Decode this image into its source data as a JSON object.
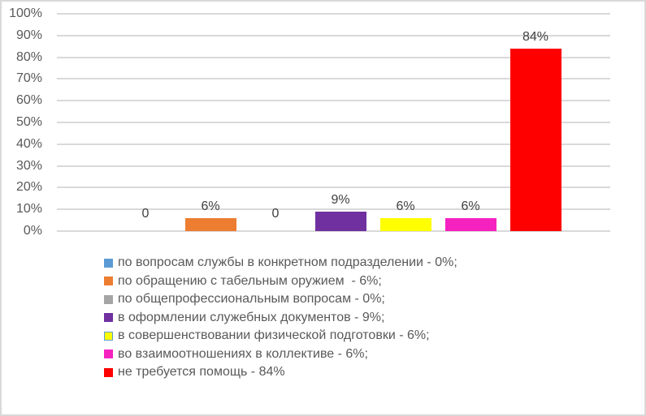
{
  "chart_data": {
    "type": "bar",
    "title": "",
    "xlabel": "",
    "ylabel": "",
    "ylim": [
      0,
      100
    ],
    "grid": true,
    "legend_position": "bottom",
    "y_ticks": [
      "0%",
      "10%",
      "20%",
      "30%",
      "40%",
      "50%",
      "60%",
      "70%",
      "80%",
      "90%",
      "100%"
    ],
    "categories": [
      "по вопросам службы в конкретном подразделении - 0%;",
      "по обращению с табельным оружием  - 6%;",
      "по общепрофессиональным вопросам - 0%;",
      "в оформлении служебных документов - 9%;",
      "в совершенствовании физической подготовки - 6%;",
      "во взаимоотношениях в коллективе - 6%;",
      "не требуется помощь - 84%"
    ],
    "values": [
      0,
      6,
      0,
      9,
      6,
      6,
      84
    ],
    "data_labels": [
      "0",
      "6%",
      "0",
      "9%",
      "6%",
      "6%",
      "84%"
    ],
    "colors": [
      "#5b9bd5",
      "#ed7d31",
      "#a5a5a5",
      "#7030a0",
      "#ffff00",
      "#f522c0",
      "#ff0000"
    ]
  },
  "legend": {
    "items": [
      {
        "label": "по вопросам службы в конкретном подразделении - 0%;",
        "color": "#5b9bd5"
      },
      {
        "label": "по обращению с табельным оружием  - 6%;",
        "color": "#ed7d31"
      },
      {
        "label": "по общепрофессиональным вопросам - 0%;",
        "color": "#a5a5a5"
      },
      {
        "label": "в оформлении служебных документов - 9%;",
        "color": "#7030a0"
      },
      {
        "label": "в совершенствовании физической подготовки - 6%;",
        "color": "#ffff00"
      },
      {
        "label": "во взаимоотношениях в коллективе - 6%;",
        "color": "#f522c0"
      },
      {
        "label": "не требуется помощь - 84%",
        "color": "#ff0000"
      }
    ]
  }
}
